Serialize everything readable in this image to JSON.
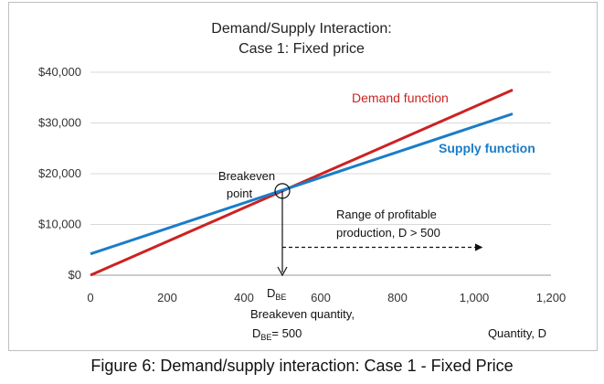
{
  "chart_data": {
    "type": "line",
    "title": "Demand/Supply Interaction:",
    "subtitle": "Case 1: Fixed price",
    "xlabel": "Quantity, D",
    "xlim": [
      0,
      1200
    ],
    "ylim": [
      0,
      40000
    ],
    "x_ticks": [
      "0",
      "200",
      "400",
      "600",
      "800",
      "1,000",
      "1,200"
    ],
    "x_tick_values": [
      0,
      200,
      400,
      600,
      800,
      1000,
      1200
    ],
    "y_ticks": [
      "$0",
      "$10,000",
      "$20,000",
      "$30,000",
      "$40,000"
    ],
    "y_tick_values": [
      0,
      10000,
      20000,
      30000,
      40000
    ],
    "grid": "horizontal",
    "series": [
      {
        "name": "Demand function",
        "color": "#cc2222",
        "x": [
          0,
          1100
        ],
        "y": [
          0,
          36500
        ]
      },
      {
        "name": "Supply function",
        "color": "#1a7dc8",
        "x": [
          0,
          1100
        ],
        "y": [
          4200,
          31800
        ]
      }
    ],
    "breakeven": {
      "x": 500,
      "y": 16600
    },
    "annotations": {
      "breakeven_point_line1": "Breakeven",
      "breakeven_point_line2": "point",
      "range_line1": "Range of profitable",
      "range_line2": "production, D > 500",
      "range_arrow_from": 500,
      "range_arrow_to": 1020,
      "range_arrow_y": 5500,
      "dbe_base": "D",
      "dbe_sub": "BE",
      "bq_line1": "Breakeven quantity,",
      "bq_line2_base": "D",
      "bq_line2_sub": "BE",
      "bq_line2_rest": "= 500"
    }
  },
  "caption": "Figure 6: Demand/supply interaction: Case 1 - Fixed Price"
}
